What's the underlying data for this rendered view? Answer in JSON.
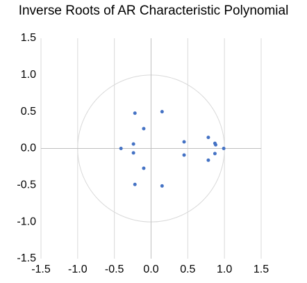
{
  "chart_data": {
    "type": "scatter",
    "title": "Inverse Roots of AR Characteristic Polynomial",
    "series": [
      {
        "color": "#4472c4",
        "x": [
          -0.22,
          0.15,
          -0.1,
          -0.24,
          -0.41,
          -0.24,
          -0.1,
          -0.22,
          0.15,
          0.45,
          0.45,
          0.78,
          0.78,
          0.87,
          0.88,
          0.87,
          0.99
        ],
        "values": [
          0.48,
          0.5,
          0.27,
          0.06,
          0.0,
          -0.06,
          -0.27,
          -0.49,
          -0.51,
          0.09,
          -0.09,
          0.15,
          -0.16,
          0.07,
          0.05,
          -0.07,
          0.0
        ]
      }
    ],
    "xlim": [
      -1.5,
      1.5
    ],
    "ylim": [
      -1.5,
      1.5
    ],
    "xticks": [
      -1.5,
      {
        "value": -1,
        "label": "-1.0"
      },
      -0.5,
      {
        "value": 0,
        "label": "0.0"
      },
      0.5,
      {
        "value": 1,
        "label": "1.0"
      },
      1.5
    ],
    "yticks": [
      -1.5,
      {
        "value": -1,
        "label": "-1.0"
      },
      -0.5,
      {
        "value": 0,
        "label": "0.0"
      },
      0.5,
      {
        "value": 1,
        "label": "1.0"
      },
      1.5
    ],
    "grid": true,
    "reference_circle": {
      "radius": 1,
      "color": "#d9d9d9"
    }
  }
}
